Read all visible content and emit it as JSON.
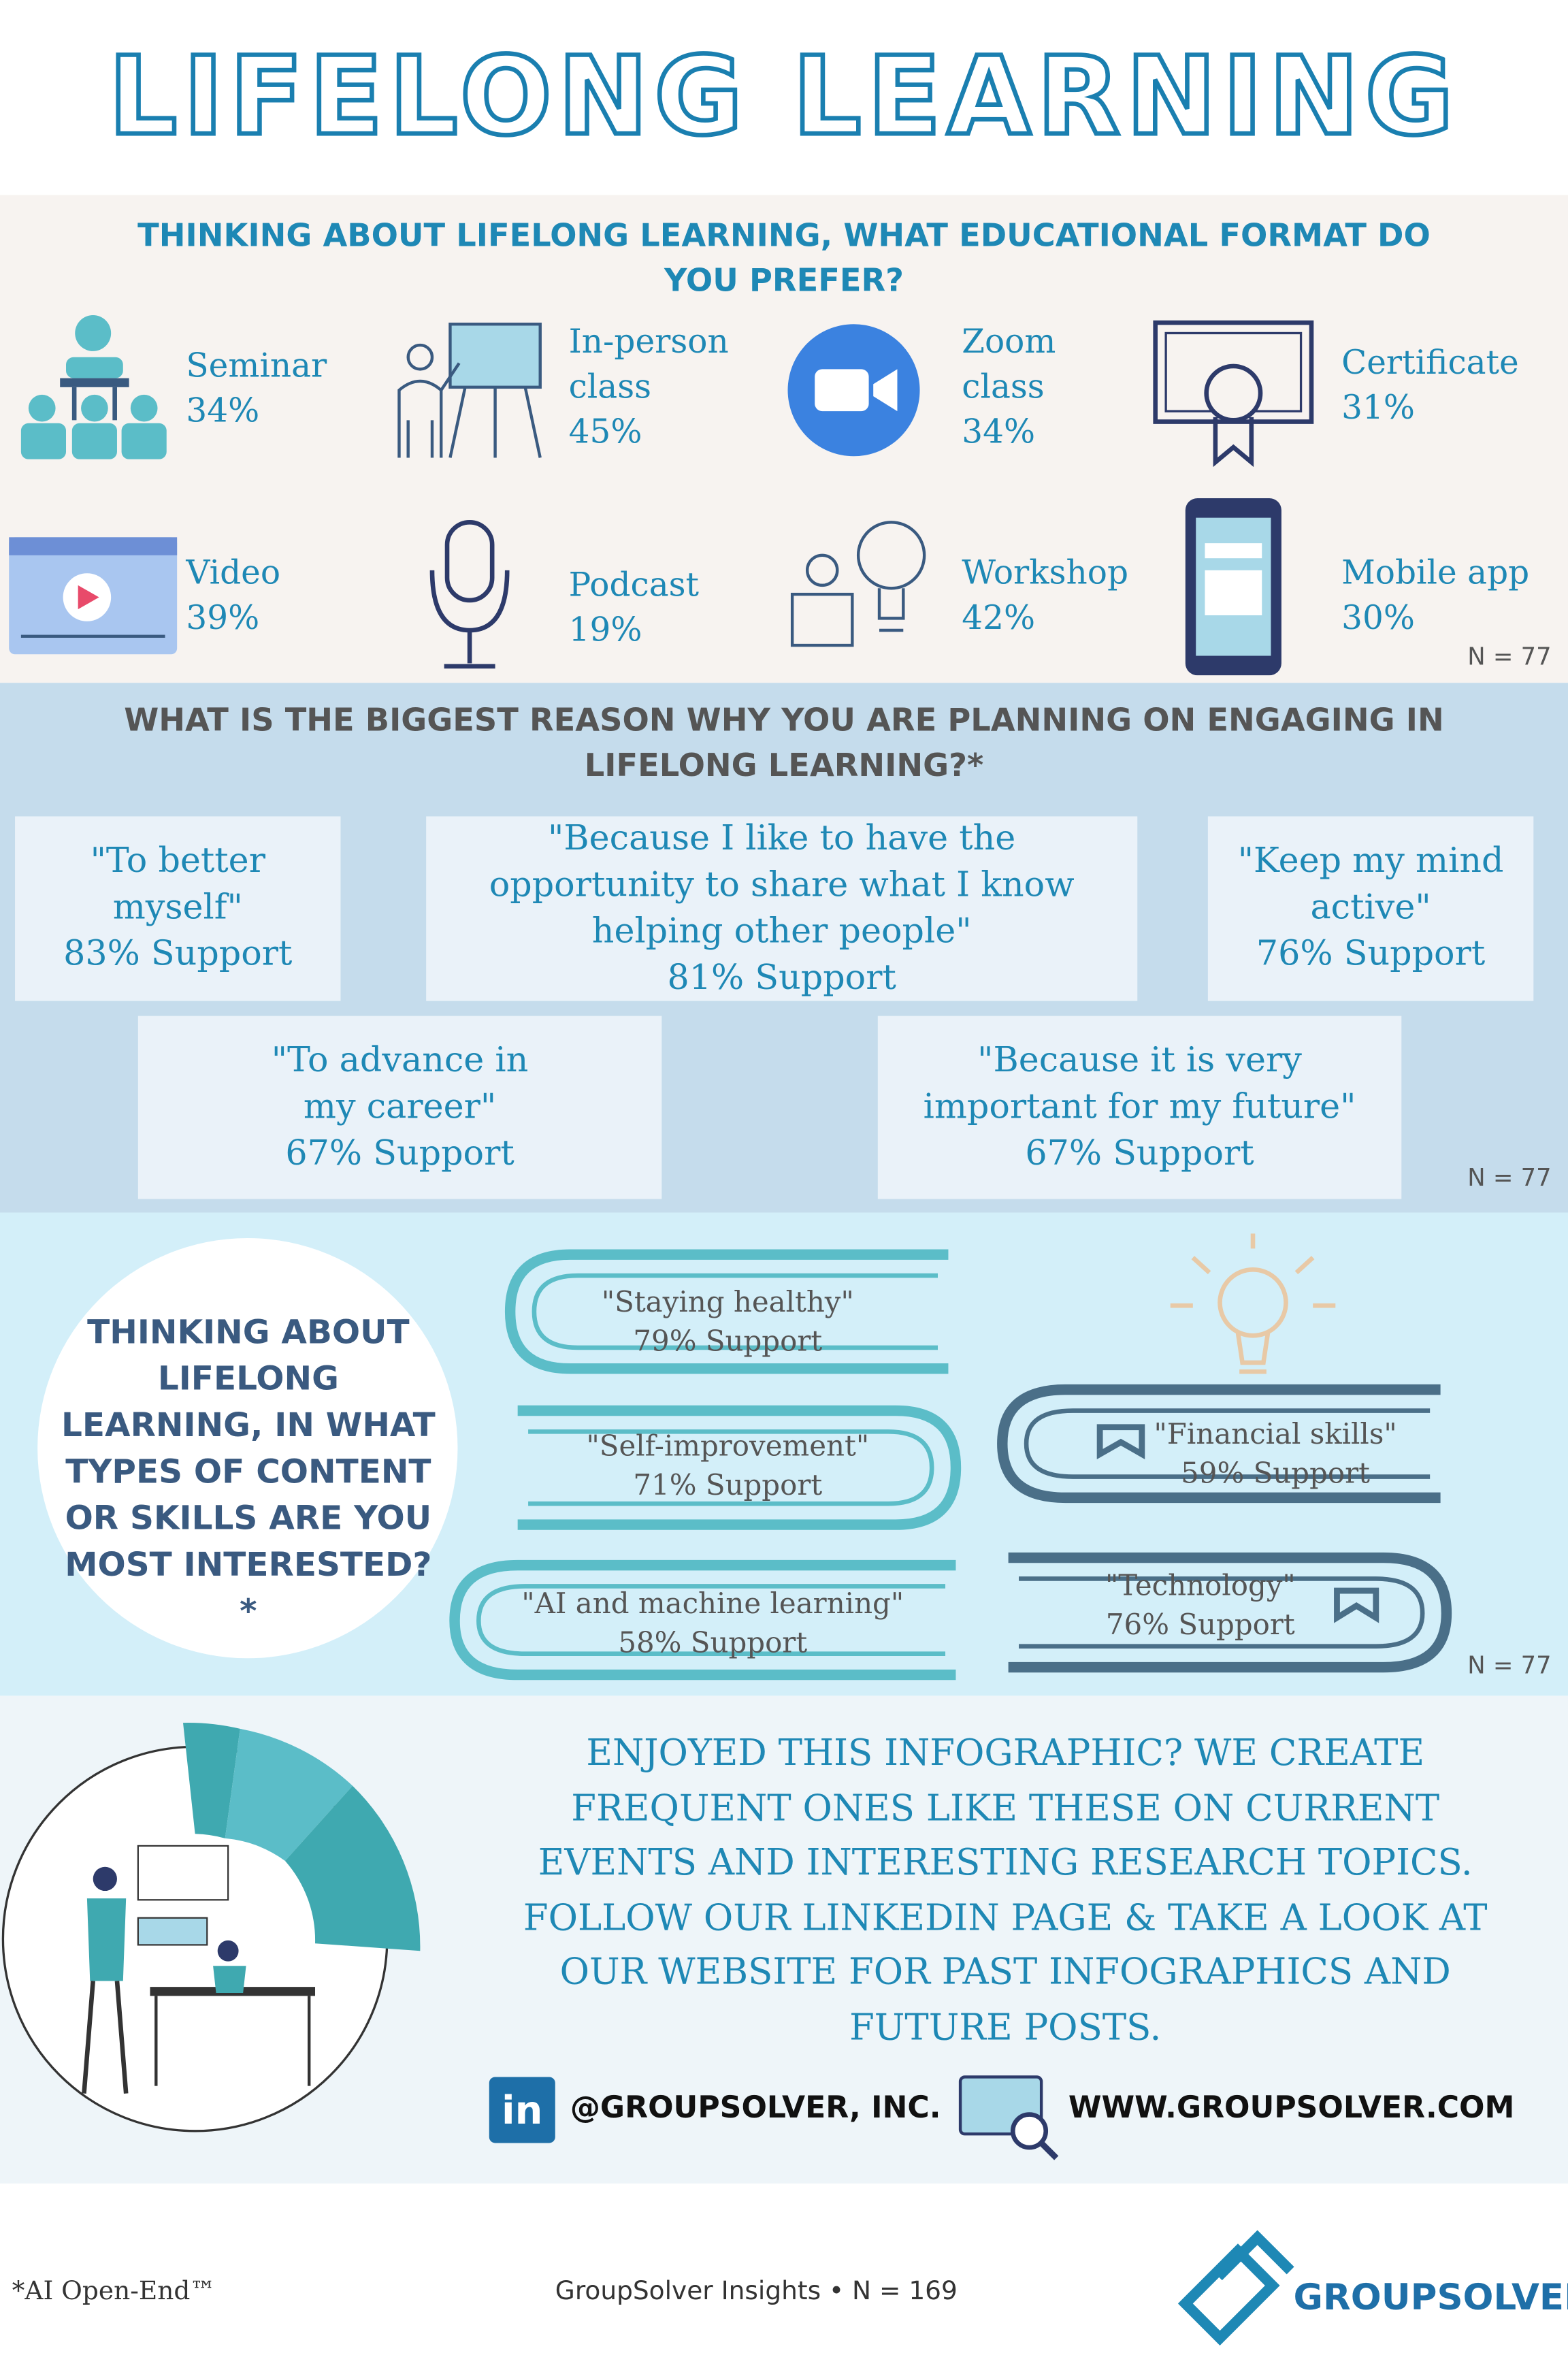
{
  "title": "LIFELONG LEARNING",
  "format_section": {
    "question": "THINKING ABOUT LIFELONG LEARNING, WHAT EDUCATIONAL FORMAT DO YOU PREFER?",
    "items": [
      {
        "label": "Seminar",
        "value": "34%"
      },
      {
        "label": "In-person class",
        "value": "45%"
      },
      {
        "label": "Zoom class",
        "value": "34%"
      },
      {
        "label": "Certificate",
        "value": "31%"
      },
      {
        "label": "Video",
        "value": "39%"
      },
      {
        "label": "Podcast",
        "value": "19%"
      },
      {
        "label": "Workshop",
        "value": "42%"
      },
      {
        "label": "Mobile app",
        "value": "30%"
      }
    ],
    "n": "N = 77"
  },
  "reason_section": {
    "question": "WHAT IS THE BIGGEST REASON WHY YOU ARE PLANNING ON ENGAGING IN LIFELONG LEARNING?*",
    "items": [
      {
        "quote": "\"To better myself\"",
        "support": "83% Support"
      },
      {
        "quote": "\"Because I like to have the opportunity to share what I know helping other people\"",
        "support": "81% Support"
      },
      {
        "quote": "\"Keep my mind active\"",
        "support": "76% Support"
      },
      {
        "quote": "\"To advance in my career\"",
        "support": "67% Support"
      },
      {
        "quote": "\"Because it is very important for my future\"",
        "support": "67% Support"
      }
    ],
    "n": "N = 77"
  },
  "content_section": {
    "question": "THINKING ABOUT LIFELONG LEARNING, IN WHAT TYPES OF CONTENT OR SKILLS ARE YOU MOST INTERESTED?*",
    "items": [
      {
        "quote": "\"Staying healthy\"",
        "support": "79% Support"
      },
      {
        "quote": "\"Self-improvement\"",
        "support": "71% Support"
      },
      {
        "quote": "\"AI and machine learning\"",
        "support": "58% Support"
      },
      {
        "quote": "\"Financial skills\"",
        "support": "59% Support"
      },
      {
        "quote": "\"Technology\"",
        "support": "76% Support"
      }
    ],
    "n": "N = 77"
  },
  "cta": {
    "text": "ENJOYED THIS INFOGRAPHIC? WE CREATE FREQUENT ONES LIKE THESE ON CURRENT EVENTS AND INTERESTING RESEARCH TOPICS. FOLLOW OUR LINKEDIN PAGE & TAKE A LOOK AT OUR WEBSITE FOR PAST INFOGRAPHICS AND FUTURE POSTS.",
    "linkedin": "@GROUPSOLVER, INC.",
    "website": "WWW.GROUPSOLVER.COM"
  },
  "footer": {
    "note": "*AI Open-End™",
    "source": "GroupSolver Insights • N = 169",
    "brand": "GROUPSOLVER"
  }
}
